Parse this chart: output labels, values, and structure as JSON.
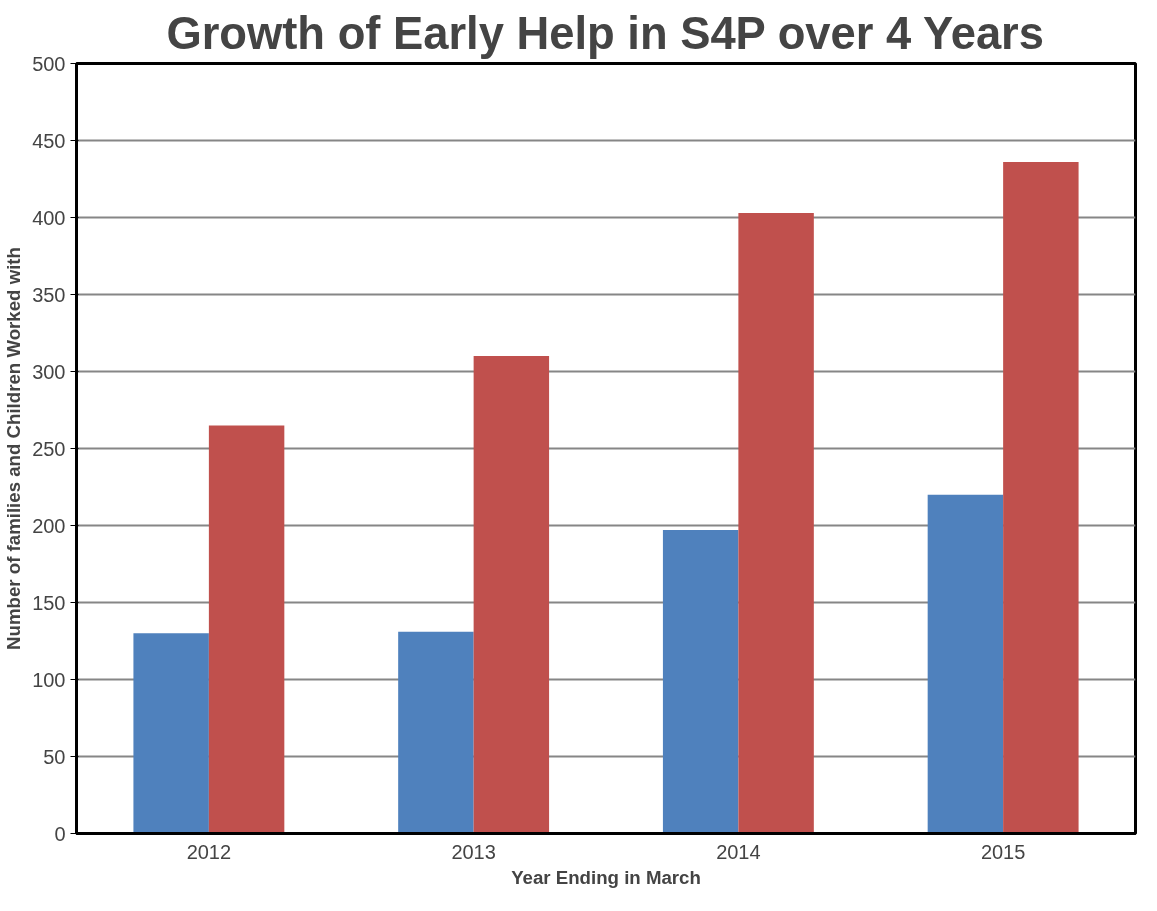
{
  "chart_data": {
    "type": "bar",
    "title": "Growth of Early Help in S4P over 4 Years",
    "xlabel": "Year Ending in March",
    "ylabel": "Number of families and Children Worked with",
    "categories": [
      "2012",
      "2013",
      "2014",
      "2015"
    ],
    "series": [
      {
        "color": "#4f81bd",
        "values": [
          130,
          131,
          197,
          220
        ]
      },
      {
        "color": "#c0504d",
        "values": [
          265,
          310,
          403,
          436
        ]
      }
    ],
    "ylim": [
      0,
      500
    ],
    "yticks": [
      0,
      50,
      100,
      150,
      200,
      250,
      300,
      350,
      400,
      450,
      500
    ],
    "grid": "y"
  }
}
